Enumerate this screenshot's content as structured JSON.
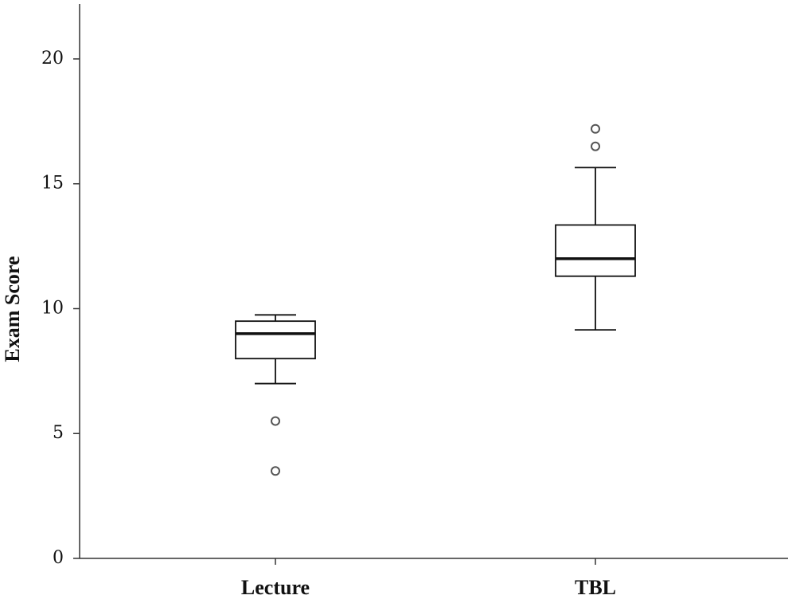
{
  "chart_data": {
    "type": "box",
    "y_label": "Exam Score",
    "categories": [
      "Lecture",
      "TBL"
    ],
    "boxes": [
      {
        "whisker_low": 7.0,
        "q1": 8.0,
        "median": 9.0,
        "q3": 9.5,
        "whisker_high": 9.75,
        "outliers": [
          5.5,
          3.5
        ]
      },
      {
        "whisker_low": 9.15,
        "q1": 11.3,
        "median": 12.0,
        "q3": 13.35,
        "whisker_high": 15.65,
        "outliers": [
          16.5,
          17.2
        ]
      }
    ],
    "ylim": [
      0,
      22.2
    ],
    "yticks": [
      0,
      5,
      10,
      15,
      20
    ],
    "grid": false
  }
}
